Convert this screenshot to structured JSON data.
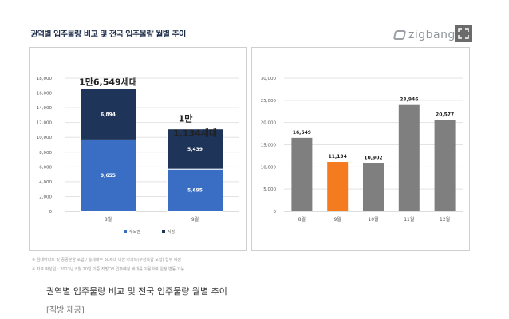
{
  "header": {
    "title": "권역별 입주물량 비교 및 전국 입주물량 월별 추이",
    "brand": "zigbang",
    "expand_icon": "expand-icon"
  },
  "colors": {
    "seoul_metro": "#3a6ec4",
    "provincial": "#1f3459",
    "highlight": "#f47b20",
    "neutral": "#7f7f7f"
  },
  "chart_data": [
    {
      "type": "bar",
      "stacked": true,
      "categories": [
        "8월",
        "9월"
      ],
      "series": [
        {
          "name": "수도권",
          "values": [
            9655,
            5695
          ],
          "color": "#3a6ec4"
        },
        {
          "name": "지방",
          "values": [
            6894,
            5439
          ],
          "color": "#1f3459"
        }
      ],
      "segment_labels": [
        [
          "9,655",
          "5,695"
        ],
        [
          "6,894",
          "5,439"
        ]
      ],
      "total_labels": [
        "1만6,549세대",
        "1만\n1,134세대"
      ],
      "ylim": [
        0,
        18000
      ],
      "yticks": [
        0,
        2000,
        4000,
        6000,
        8000,
        10000,
        12000,
        14000,
        16000,
        18000
      ],
      "ytick_labels": [
        "0",
        "2,000",
        "4,000",
        "6,000",
        "8,000",
        "10,000",
        "12,000",
        "14,000",
        "16,000",
        "18,000"
      ],
      "grid": true,
      "legend": "bottom"
    },
    {
      "type": "bar",
      "categories": [
        "8월",
        "9월",
        "10월",
        "11월",
        "12월"
      ],
      "values": [
        16549,
        11134,
        10902,
        23946,
        20577
      ],
      "value_labels": [
        "16,549",
        "11,134",
        "10,902",
        "23,946",
        "20,577"
      ],
      "highlight_index": 1,
      "ylim": [
        0,
        30000
      ],
      "yticks": [
        0,
        5000,
        10000,
        15000,
        20000,
        25000,
        30000
      ],
      "ytick_labels": [
        "0",
        "5,000",
        "10,000",
        "15,000",
        "20,000",
        "25,000",
        "30,000"
      ],
      "grid": true
    }
  ],
  "footnotes": [
    "※ 임대아파트 및 공공분양 포함 / 총세대수 30세대 이상 아파트(주상복합 포함) 입주 예정",
    "※ 자료 작성일 : 2023년 8월 20일 기준 직방DB 입주예정 세대를 이용하여 일정 변동 가능"
  ],
  "caption": "권역별 입주물량 비교 및 전국 입주물량 월별 추이",
  "credit": "[직방 제공]"
}
